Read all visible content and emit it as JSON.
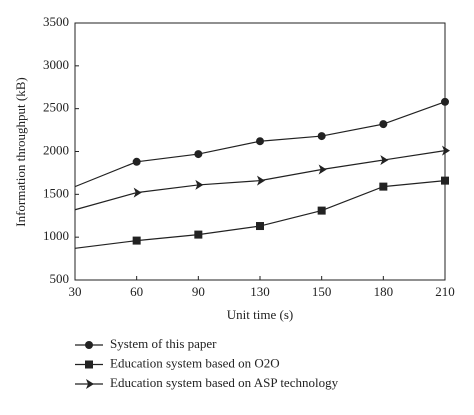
{
  "chart_data": {
    "type": "line",
    "x_label": "Unit time (s)",
    "y_label": "Information throughput (kB)",
    "categories": [
      "30",
      "60",
      "90",
      "130",
      "150",
      "180",
      "210"
    ],
    "series": [
      {
        "name": "System of this paper",
        "color": "#222222",
        "marker": "circle",
        "values": [
          1590,
          1880,
          1970,
          2120,
          2180,
          2320,
          2580
        ]
      },
      {
        "name": "Education system based on O2O",
        "color": "#222222",
        "marker": "square",
        "values": [
          870,
          960,
          1030,
          1130,
          1310,
          1590,
          1660
        ]
      },
      {
        "name": "Education system based on ASP technology",
        "color": "#222222",
        "marker": "triangle-right",
        "values": [
          1320,
          1520,
          1610,
          1660,
          1790,
          1900,
          2010
        ]
      }
    ],
    "ylim": [
      500,
      3500
    ],
    "yticks": [
      500,
      1000,
      1500,
      2000,
      2500,
      3000,
      3500
    ]
  }
}
